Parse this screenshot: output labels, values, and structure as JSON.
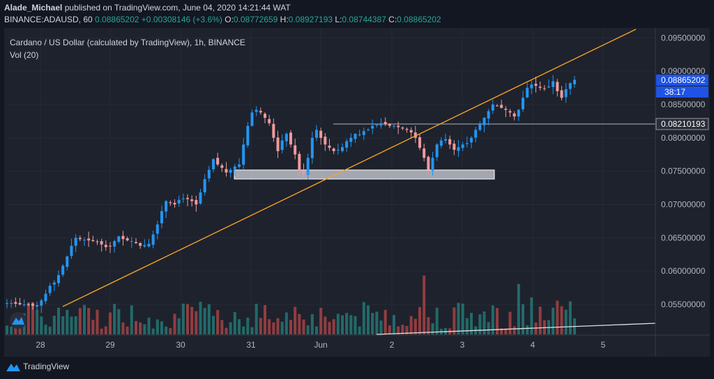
{
  "header": {
    "author": "Alade_Michael",
    "published_text": "published on TradingView.com, June 04, 2020 14:21:44 WAT",
    "symbol_line": "BINANCE:ADAUSD, 60",
    "last_price": "0.08865202",
    "change_text": "+0.00308146 (+3.6%)",
    "o_label": "O:",
    "o_value": "0.08772659",
    "h_label": "H:",
    "h_value": "0.08927193",
    "l_label": "L:",
    "l_value": "0.08744387",
    "c_label": "C:",
    "c_value": "0.08865202"
  },
  "legend": {
    "title": "Cardano / US Dollar (calculated by TradingView), 1h, BINANCE",
    "volume": "Vol (20)"
  },
  "price_axis": {
    "ticks": [
      "0.09500000",
      "0.09000000",
      "0.08500000",
      "0.08000000",
      "0.07500000",
      "0.07000000",
      "0.06500000",
      "0.06000000",
      "0.05500000"
    ],
    "current_price_label": "0.08865202",
    "countdown_label": "38:17",
    "line_label": "0.08210193"
  },
  "time_axis": {
    "ticks": [
      "28",
      "29",
      "30",
      "31",
      "Jun",
      "2",
      "3",
      "4",
      "5"
    ]
  },
  "footer": {
    "brand": "TradingView"
  },
  "colors": {
    "bull": "#2196f3",
    "bear": "#ef9a9a",
    "vol_bull": "#26a69a",
    "vol_bear": "#ef5350",
    "trendline": "#f7a325",
    "accent": "#1e53e5"
  },
  "chart_data": {
    "type": "candlestick",
    "title": "Cardano / US Dollar (calculated by TradingView), 1h, BINANCE",
    "x_categories": [
      "28",
      "29",
      "30",
      "31",
      "Jun",
      "2",
      "3",
      "4",
      "5"
    ],
    "ylim": [
      0.0505,
      0.0965
    ],
    "close_series": [
      0.0552,
      0.0552,
      0.0551,
      0.055,
      0.055,
      0.0549,
      0.0548,
      0.0549,
      0.0556,
      0.0566,
      0.0578,
      0.0583,
      0.0594,
      0.0608,
      0.0622,
      0.0638,
      0.065,
      0.0648,
      0.0647,
      0.0646,
      0.0645,
      0.0644,
      0.064,
      0.0636,
      0.0637,
      0.0645,
      0.0652,
      0.0648,
      0.0646,
      0.0645,
      0.0642,
      0.0638,
      0.0639,
      0.0641,
      0.0655,
      0.067,
      0.069,
      0.0705,
      0.0702,
      0.07,
      0.0707,
      0.0709,
      0.0708,
      0.0705,
      0.07,
      0.0718,
      0.0738,
      0.0752,
      0.0768,
      0.076,
      0.0755,
      0.0748,
      0.0752,
      0.0757,
      0.076,
      0.079,
      0.0818,
      0.0838,
      0.0842,
      0.0838,
      0.083,
      0.0822,
      0.08,
      0.078,
      0.0796,
      0.0806,
      0.079,
      0.0775,
      0.075,
      0.0745,
      0.077,
      0.08,
      0.0812,
      0.08,
      0.079,
      0.0785,
      0.078,
      0.0782,
      0.0786,
      0.0795,
      0.08,
      0.0806,
      0.0805,
      0.081,
      0.0812,
      0.0818,
      0.082,
      0.0822,
      0.082,
      0.0818,
      0.0818,
      0.0816,
      0.0814,
      0.0812,
      0.0808,
      0.08,
      0.0785,
      0.077,
      0.0752,
      0.077,
      0.079,
      0.0796,
      0.0798,
      0.079,
      0.0782,
      0.0786,
      0.079,
      0.0792,
      0.08,
      0.0812,
      0.082,
      0.083,
      0.084,
      0.085,
      0.0848,
      0.0845,
      0.0842,
      0.0838,
      0.0832,
      0.0842,
      0.086,
      0.0875,
      0.088,
      0.0878,
      0.0875,
      0.0874,
      0.0877,
      0.0885,
      0.087,
      0.086,
      0.0873,
      0.0882,
      0.0887
    ],
    "annotations": {
      "trendline": "rising trendline",
      "horizontal_line": 0.08210193,
      "support_zone": [
        0.0738,
        0.0752
      ]
    },
    "volume_series": "Vol (20) histogram with moving average"
  }
}
